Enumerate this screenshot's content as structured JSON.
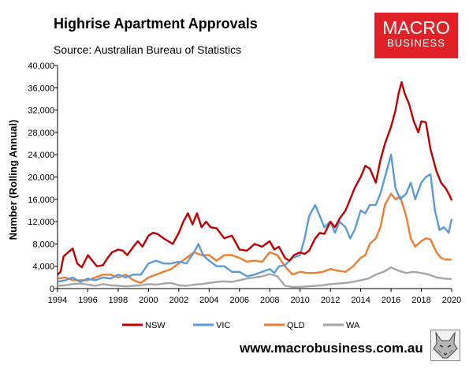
{
  "header": {
    "title": "Highrise Apartment Approvals",
    "source": "Source: Australian Bureau of Statistics",
    "logo_line1": "MACRO",
    "logo_line2": "BUSINESS"
  },
  "footer": {
    "url": "www.macrobusiness.com.au",
    "logo_icon": "wolf-icon"
  },
  "colors": {
    "NSW": "#c00000",
    "VIC": "#5b9bd5",
    "QLD": "#ed7d31",
    "WA": "#a6a6a6",
    "logo_bg": "#e02127"
  },
  "chart_data": {
    "type": "line",
    "title": "Highrise Apartment Approvals",
    "ylabel": "Number (Rolling Annual)",
    "xlabel": "",
    "xlim": [
      1994,
      2020
    ],
    "ylim": [
      0,
      40000
    ],
    "x_ticks": [
      "1994",
      "1996",
      "1998",
      "2000",
      "2002",
      "2004",
      "2006",
      "2008",
      "2010",
      "2012",
      "2014",
      "2016",
      "2018",
      "2020"
    ],
    "y_ticks": [
      "0",
      "4,000",
      "8,000",
      "12,000",
      "16,000",
      "20,000",
      "24,000",
      "28,000",
      "32,000",
      "36,000",
      "40,000"
    ],
    "x_tick_values": [
      1994,
      1996,
      1998,
      2000,
      2002,
      2004,
      2006,
      2008,
      2010,
      2012,
      2014,
      2016,
      2018,
      2020
    ],
    "y_tick_values": [
      0,
      4000,
      8000,
      12000,
      16000,
      20000,
      24000,
      28000,
      32000,
      36000,
      40000
    ],
    "grid": false,
    "legend_position": "bottom",
    "series": [
      {
        "name": "NSW",
        "x": [
          1994.0,
          1994.2,
          1994.4,
          1994.7,
          1995.0,
          1995.3,
          1995.6,
          1996.0,
          1996.3,
          1996.6,
          1997.0,
          1997.3,
          1997.6,
          1998.0,
          1998.3,
          1998.6,
          1999.0,
          1999.3,
          1999.6,
          2000.0,
          2000.3,
          2000.6,
          2001.0,
          2001.3,
          2001.6,
          2002.0,
          2002.3,
          2002.6,
          2002.9,
          2003.2,
          2003.5,
          2003.8,
          2004.1,
          2004.5,
          2005.0,
          2005.5,
          2006.0,
          2006.5,
          2007.0,
          2007.5,
          2008.0,
          2008.3,
          2008.6,
          2009.0,
          2009.3,
          2009.6,
          2010.0,
          2010.3,
          2010.6,
          2011.0,
          2011.3,
          2011.6,
          2012.0,
          2012.3,
          2012.6,
          2013.0,
          2013.3,
          2013.6,
          2014.0,
          2014.3,
          2014.6,
          2015.0,
          2015.3,
          2015.6,
          2016.0,
          2016.3,
          2016.5,
          2016.7,
          2016.9,
          2017.2,
          2017.5,
          2017.8,
          2018.0,
          2018.3,
          2018.6,
          2019.0,
          2019.3,
          2019.6,
          2019.9,
          2020.0
        ],
        "values": [
          2500,
          3000,
          5800,
          6500,
          7200,
          4500,
          3800,
          6000,
          5000,
          4000,
          4200,
          5500,
          6500,
          7000,
          6800,
          6000,
          7500,
          8500,
          7500,
          9500,
          10000,
          9800,
          9000,
          8500,
          8000,
          10000,
          12000,
          13500,
          11500,
          13500,
          11000,
          12000,
          11000,
          10800,
          9000,
          9500,
          7000,
          6800,
          8000,
          7500,
          8500,
          7000,
          7500,
          5500,
          5000,
          6000,
          6500,
          6200,
          6800,
          9000,
          10000,
          9800,
          12000,
          11000,
          12500,
          14000,
          16000,
          18000,
          20000,
          22000,
          21500,
          19000,
          23000,
          26000,
          29000,
          32000,
          35000,
          37000,
          35000,
          33000,
          30000,
          28000,
          30000,
          29800,
          25000,
          21000,
          19000,
          18000,
          16500,
          15800
        ]
      },
      {
        "name": "VIC",
        "x": [
          1994.0,
          1994.5,
          1995.0,
          1995.5,
          1996.0,
          1996.5,
          1997.0,
          1997.5,
          1998.0,
          1998.5,
          1999.0,
          1999.5,
          2000.0,
          2000.5,
          2001.0,
          2001.5,
          2002.0,
          2002.5,
          2003.0,
          2003.3,
          2003.6,
          2004.0,
          2004.5,
          2005.0,
          2005.5,
          2006.0,
          2006.5,
          2007.0,
          2007.5,
          2008.0,
          2008.3,
          2008.6,
          2009.0,
          2009.5,
          2010.0,
          2010.3,
          2010.6,
          2011.0,
          2011.3,
          2011.6,
          2012.0,
          2012.3,
          2012.6,
          2013.0,
          2013.3,
          2013.6,
          2014.0,
          2014.3,
          2014.6,
          2015.0,
          2015.3,
          2015.6,
          2016.0,
          2016.3,
          2016.6,
          2017.0,
          2017.3,
          2017.6,
          2018.0,
          2018.3,
          2018.6,
          2018.9,
          2019.2,
          2019.5,
          2019.8,
          2020.0
        ],
        "values": [
          1200,
          1500,
          2000,
          1200,
          1800,
          1500,
          2000,
          1800,
          2500,
          2000,
          2500,
          2500,
          4500,
          5000,
          4500,
          4500,
          4800,
          4500,
          6500,
          8000,
          6000,
          5000,
          4000,
          4000,
          3000,
          3000,
          2200,
          2500,
          3000,
          3500,
          2800,
          4000,
          4200,
          5500,
          6000,
          9000,
          13000,
          15000,
          13000,
          11000,
          12000,
          10000,
          12000,
          11000,
          9000,
          10500,
          14000,
          13500,
          15000,
          15000,
          17000,
          20000,
          24000,
          18000,
          16000,
          17000,
          19000,
          16000,
          19000,
          20000,
          20500,
          14000,
          10500,
          11000,
          10000,
          12500
        ]
      },
      {
        "name": "QLD",
        "x": [
          1994.0,
          1994.5,
          1995.0,
          1995.5,
          1996.0,
          1996.5,
          1997.0,
          1997.5,
          1998.0,
          1998.5,
          1999.0,
          1999.5,
          2000.0,
          2000.5,
          2001.0,
          2001.5,
          2002.0,
          2002.5,
          2003.0,
          2003.5,
          2004.0,
          2004.5,
          2005.0,
          2005.5,
          2006.0,
          2006.5,
          2007.0,
          2007.5,
          2008.0,
          2008.5,
          2009.0,
          2009.5,
          2010.0,
          2010.5,
          2011.0,
          2011.5,
          2012.0,
          2012.5,
          2013.0,
          2013.5,
          2014.0,
          2014.3,
          2014.6,
          2015.0,
          2015.3,
          2015.6,
          2016.0,
          2016.3,
          2016.6,
          2017.0,
          2017.3,
          2017.6,
          2018.0,
          2018.3,
          2018.6,
          2019.0,
          2019.3,
          2019.6,
          2020.0
        ],
        "values": [
          1800,
          2000,
          1500,
          1500,
          1500,
          2000,
          2500,
          2500,
          2000,
          2500,
          1500,
          1000,
          2000,
          2500,
          3000,
          3500,
          4500,
          5500,
          6500,
          6000,
          6000,
          5000,
          6000,
          6000,
          5500,
          4800,
          5000,
          4800,
          6500,
          6000,
          4000,
          2500,
          3000,
          2800,
          2800,
          3000,
          3500,
          3200,
          3000,
          4000,
          5500,
          6000,
          8000,
          9000,
          11000,
          15000,
          17000,
          16000,
          16500,
          13000,
          9000,
          7500,
          8500,
          9000,
          8800,
          6500,
          5500,
          5200,
          5200
        ]
      },
      {
        "name": "WA",
        "x": [
          1994.0,
          1994.5,
          1995.0,
          1995.5,
          1996.0,
          1996.5,
          1997.0,
          1997.5,
          1998.0,
          1998.5,
          1999.0,
          1999.5,
          2000.0,
          2000.5,
          2001.0,
          2001.5,
          2002.0,
          2002.5,
          2003.0,
          2003.5,
          2004.0,
          2004.5,
          2005.0,
          2005.5,
          2006.0,
          2006.5,
          2007.0,
          2007.5,
          2008.0,
          2008.5,
          2009.0,
          2009.5,
          2010.0,
          2010.5,
          2011.0,
          2011.5,
          2012.0,
          2012.5,
          2013.0,
          2013.5,
          2014.0,
          2014.5,
          2015.0,
          2015.5,
          2016.0,
          2016.5,
          2017.0,
          2017.5,
          2018.0,
          2018.5,
          2019.0,
          2019.5,
          2020.0
        ],
        "values": [
          500,
          600,
          800,
          900,
          700,
          500,
          800,
          600,
          500,
          400,
          500,
          600,
          800,
          700,
          900,
          1000,
          600,
          500,
          700,
          800,
          1000,
          1200,
          1300,
          1200,
          1500,
          1800,
          2000,
          2200,
          2600,
          2200,
          500,
          300,
          300,
          400,
          500,
          600,
          800,
          900,
          1000,
          1200,
          1500,
          1800,
          2500,
          3000,
          3800,
          3200,
          2800,
          3000,
          2800,
          2500,
          2000,
          1800,
          1700
        ]
      }
    ]
  }
}
